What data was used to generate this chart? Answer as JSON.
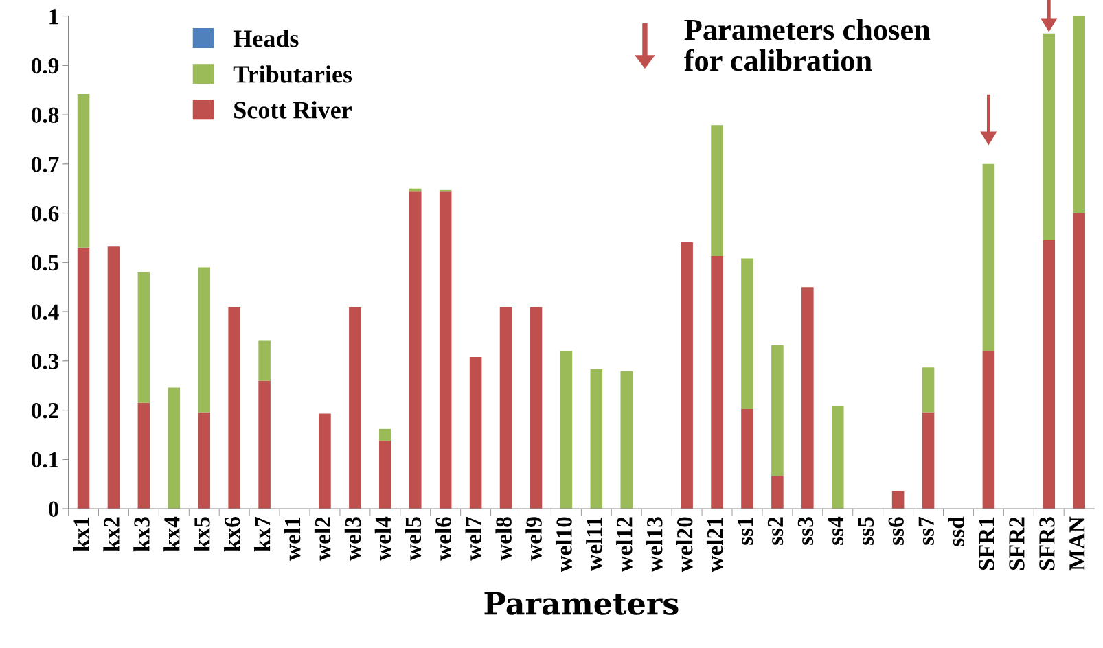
{
  "chart_data": {
    "type": "bar",
    "stacked": true,
    "xlabel": "Parameters",
    "categories": [
      "kx1",
      "kx2",
      "kx3",
      "kx4",
      "kx5",
      "kx6",
      "kx7",
      "wel1",
      "wel2",
      "wel3",
      "wel4",
      "wel5",
      "wel6",
      "wel7",
      "wel8",
      "wel9",
      "wel10",
      "wel11",
      "wel12",
      "wel13",
      "wel20",
      "wel21",
      "ss1",
      "ss2",
      "ss3",
      "ss4",
      "ss5",
      "ss6",
      "ss7",
      "ssd",
      "SFR1",
      "SFR2",
      "SFR3",
      "MAN"
    ],
    "series": [
      {
        "name": "Scott River",
        "color": "#c0504d",
        "values": [
          0.53,
          0.532,
          0.215,
          0,
          0.196,
          0.41,
          0.26,
          0,
          0.193,
          0.41,
          0.138,
          0.645,
          0.645,
          0.308,
          0.41,
          0.41,
          0,
          0,
          0,
          0,
          0.541,
          0.513,
          0.202,
          0.067,
          0.45,
          0,
          0,
          0.036,
          0.196,
          0,
          0.32,
          0,
          0.545,
          0.6
        ]
      },
      {
        "name": "Tributaries",
        "color": "#9bbb59",
        "values": [
          0.312,
          0,
          0.266,
          0.246,
          0.294,
          0,
          0.081,
          0,
          0,
          0,
          0.024,
          0.005,
          0.002,
          0,
          0,
          0,
          0.32,
          0.283,
          0.279,
          0,
          0,
          0.266,
          0.306,
          0.265,
          0,
          0.208,
          0,
          0,
          0.091,
          0,
          0.38,
          0,
          0.42,
          0.4
        ]
      },
      {
        "name": "Heads",
        "color": "#4f81bd",
        "values": [
          0,
          0,
          0,
          0,
          0,
          0,
          0,
          0,
          0,
          0,
          0,
          0,
          0,
          0,
          0,
          0,
          0,
          0,
          0,
          0,
          0,
          0,
          0,
          0,
          0,
          0,
          0,
          0,
          0,
          0,
          0,
          0,
          0,
          0
        ]
      }
    ],
    "ylim": [
      0,
      1
    ],
    "yticks": [
      0,
      0.1,
      0.2,
      0.3,
      0.4,
      0.5,
      0.6,
      0.7,
      0.8,
      0.9,
      1
    ],
    "legend": "top left",
    "grid": false,
    "annotations": [
      "Parameters chosen\nfor calibration"
    ]
  }
}
